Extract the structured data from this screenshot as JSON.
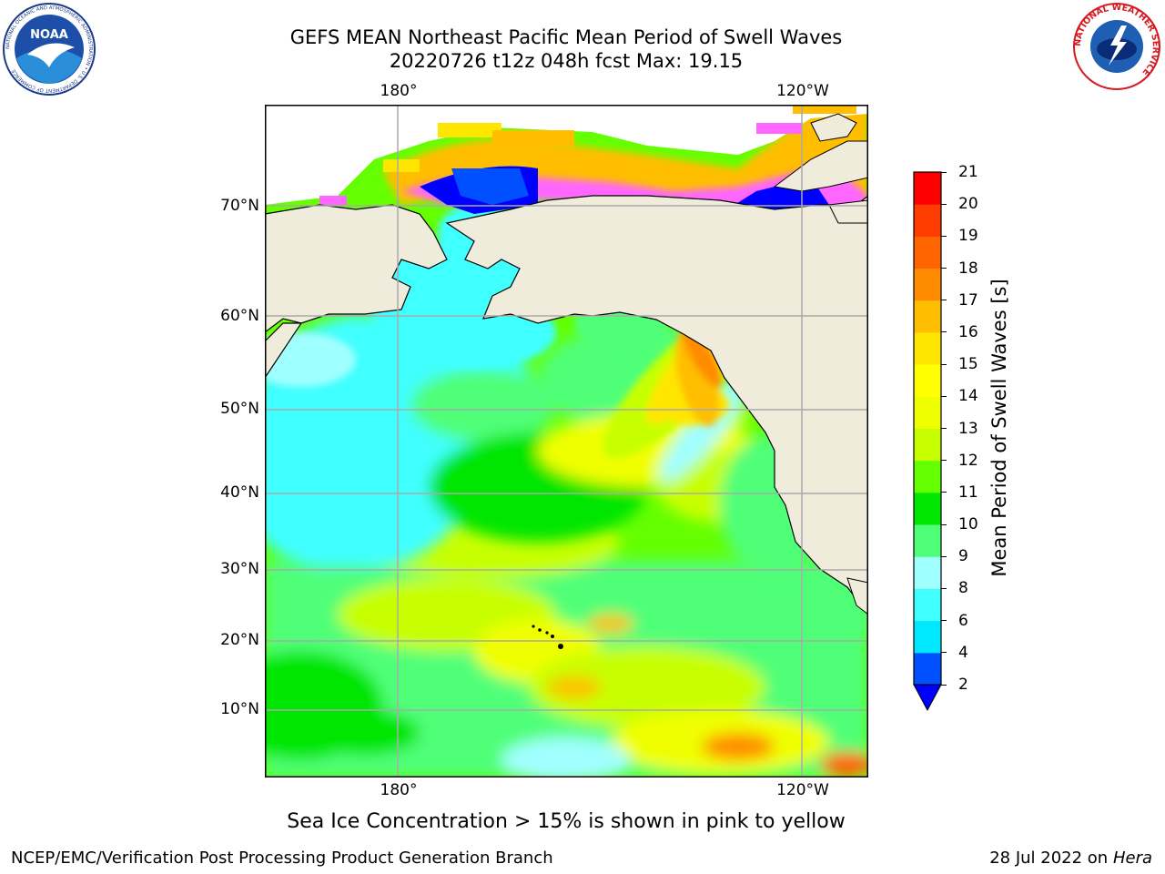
{
  "title_line1": "GEFS MEAN Northeast Pacific Mean Period of Swell Waves",
  "title_line2": "20220726 t12z 048h fcst   Max: 19.15",
  "map": {
    "lon_labels": [
      "180°",
      "120°W"
    ],
    "lat_labels": [
      "70°N",
      "60°N",
      "50°N",
      "40°N",
      "30°N",
      "20°N",
      "10°N"
    ],
    "gridlines": true,
    "land_color": "#efecdc",
    "coastline_color": "#000000"
  },
  "colorbar": {
    "label": "Mean Period of Swell Waves [s]",
    "ticks": [
      "2",
      "4",
      "6",
      "8",
      "9",
      "10",
      "11",
      "12",
      "13",
      "14",
      "15",
      "16",
      "17",
      "18",
      "19",
      "20",
      "21"
    ],
    "colors": [
      "#0050ff",
      "#00e8ff",
      "#40ffff",
      "#a0ffff",
      "#50ff78",
      "#00e600",
      "#64ff00",
      "#c8ff00",
      "#f0ff00",
      "#ffff00",
      "#ffe600",
      "#ffbe00",
      "#ff8c00",
      "#ff6400",
      "#ff3c00",
      "#ff0000"
    ],
    "extend_low_color": "#0000ff"
  },
  "note": "Sea Ice Concentration > 15% is shown in pink to yellow",
  "footer_left": "NCEP/EMC/Verification Post Processing Product Generation Branch",
  "footer_right_date": "28 Jul 2022 on ",
  "footer_right_host": "Hera",
  "logos": {
    "noaa_text": "NOAA",
    "noaa_ring_text": "NATIONAL OCEANIC AND ATMOSPHERIC ADMINISTRATION • U.S. DEPARTMENT OF COMMERCE",
    "nws_ring_text": "NATIONAL WEATHER SERVICE"
  }
}
